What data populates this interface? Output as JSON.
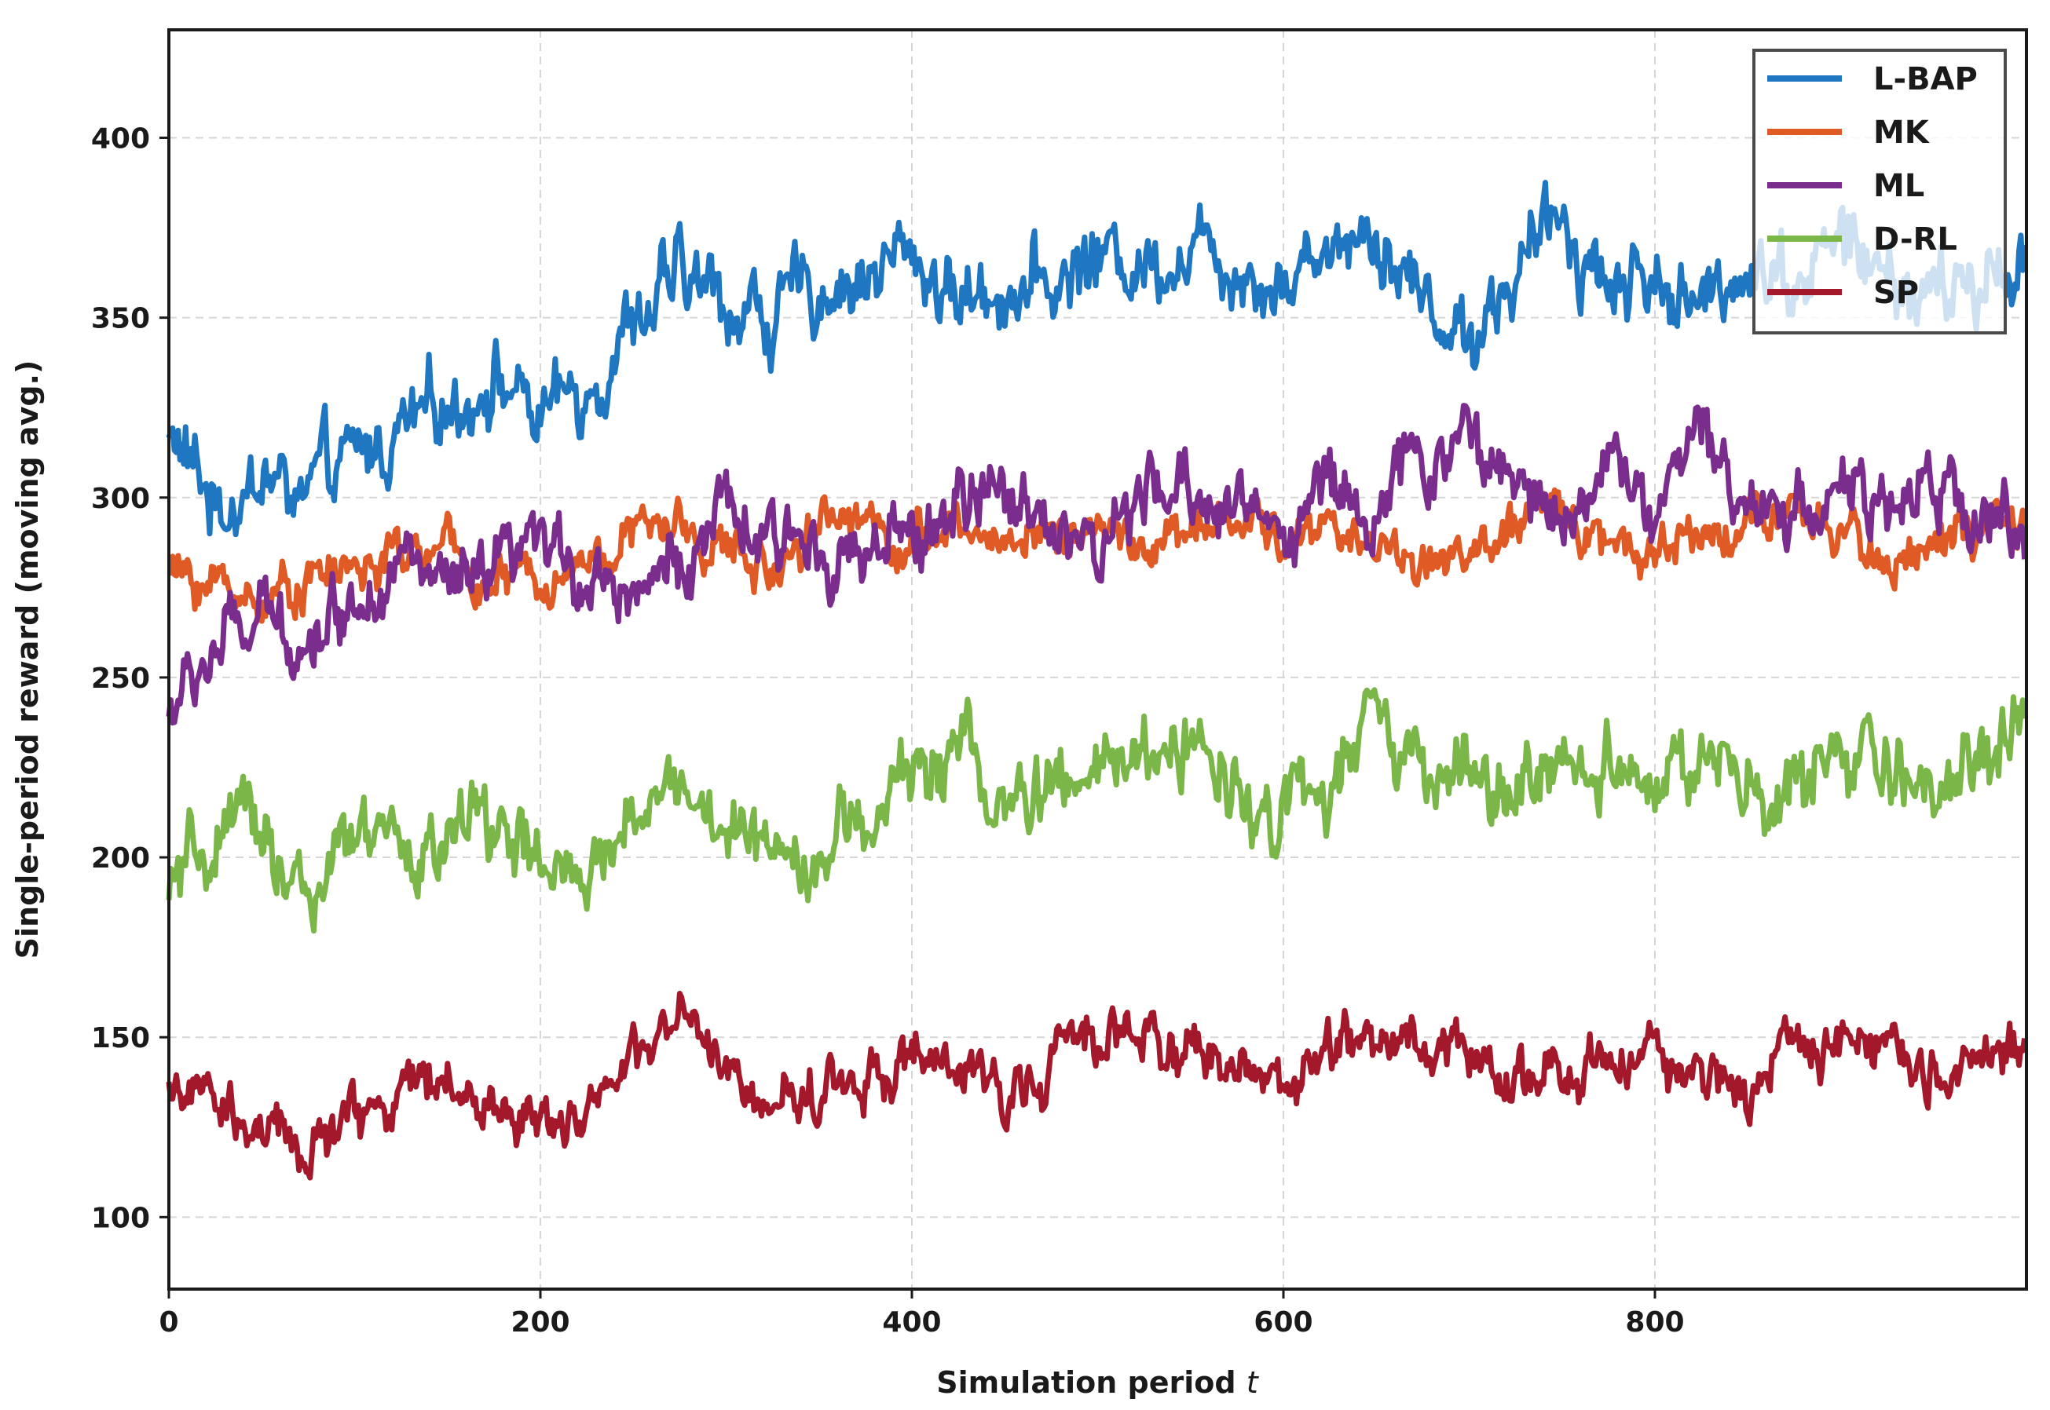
{
  "chart_data": {
    "type": "line",
    "title": "",
    "xlabel": "Simulation period",
    "xlabel_var": "t",
    "ylabel": "Single-period reward (moving avg.)",
    "xlim": [
      0,
      1000
    ],
    "ylim": [
      80,
      430
    ],
    "xticks": [
      "0",
      "200",
      "400",
      "600",
      "800"
    ],
    "yticks": [
      "100",
      "150",
      "200",
      "250",
      "300",
      "350",
      "400"
    ],
    "grid": true,
    "legend_position": "top-right",
    "series": [
      {
        "name": "L-BAP",
        "color": "#1f77c2",
        "x": [
          0,
          25,
          50,
          75,
          100,
          125,
          150,
          175,
          200,
          225,
          250,
          275,
          300,
          325,
          350,
          375,
          400,
          425,
          450,
          475,
          500,
          525,
          550,
          575,
          600,
          625,
          650,
          675,
          700,
          725,
          750,
          775,
          800,
          825,
          850,
          875,
          900,
          925,
          950,
          975,
          1000
        ],
        "values": [
          318,
          298,
          305,
          300,
          310,
          318,
          325,
          335,
          322,
          332,
          350,
          360,
          355,
          350,
          358,
          362,
          368,
          355,
          360,
          358,
          368,
          365,
          372,
          366,
          360,
          372,
          376,
          355,
          345,
          362,
          378,
          360,
          362,
          350,
          368,
          360,
          372,
          360,
          356,
          358,
          370
        ]
      },
      {
        "name": "MK",
        "color": "#e05a26",
        "x": [
          0,
          25,
          50,
          75,
          100,
          125,
          150,
          175,
          200,
          225,
          250,
          275,
          300,
          325,
          350,
          375,
          400,
          425,
          450,
          475,
          500,
          525,
          550,
          575,
          600,
          625,
          650,
          675,
          700,
          725,
          750,
          775,
          800,
          825,
          850,
          875,
          900,
          925,
          950,
          975,
          1000
        ],
        "values": [
          279,
          276,
          272,
          278,
          280,
          283,
          285,
          275,
          278,
          283,
          290,
          292,
          285,
          280,
          296,
          294,
          288,
          290,
          288,
          292,
          290,
          286,
          290,
          294,
          288,
          292,
          287,
          282,
          284,
          290,
          298,
          288,
          286,
          290,
          294,
          292,
          290,
          282,
          288,
          290,
          290
        ]
      },
      {
        "name": "ML",
        "color": "#7b2d8e",
        "x": [
          0,
          25,
          50,
          75,
          100,
          125,
          150,
          175,
          200,
          225,
          250,
          275,
          300,
          325,
          350,
          375,
          400,
          425,
          450,
          475,
          500,
          525,
          550,
          575,
          600,
          625,
          650,
          675,
          700,
          725,
          750,
          775,
          800,
          825,
          850,
          875,
          900,
          925,
          950,
          975,
          1000
        ],
        "values": [
          240,
          258,
          265,
          262,
          272,
          285,
          272,
          276,
          285,
          280,
          276,
          282,
          294,
          284,
          290,
          282,
          287,
          298,
          300,
          296,
          284,
          298,
          302,
          298,
          292,
          305,
          296,
          310,
          318,
          302,
          298,
          310,
          298,
          315,
          302,
          296,
          304,
          295,
          302,
          296,
          292
        ]
      },
      {
        "name": "D-RL",
        "color": "#7ab648",
        "x": [
          0,
          25,
          50,
          75,
          100,
          125,
          150,
          175,
          200,
          225,
          250,
          275,
          300,
          325,
          350,
          375,
          400,
          425,
          450,
          475,
          500,
          525,
          550,
          575,
          600,
          625,
          650,
          675,
          700,
          725,
          750,
          775,
          800,
          825,
          850,
          875,
          900,
          925,
          950,
          975,
          1000
        ],
        "values": [
          190,
          202,
          210,
          186,
          205,
          200,
          205,
          212,
          196,
          188,
          215,
          222,
          205,
          206,
          202,
          208,
          224,
          232,
          212,
          218,
          222,
          228,
          232,
          220,
          215,
          218,
          236,
          224,
          220,
          216,
          226,
          230,
          222,
          224,
          218,
          214,
          232,
          218,
          222,
          230,
          236
        ]
      },
      {
        "name": "SP",
        "color": "#a3192b",
        "x": [
          0,
          25,
          50,
          75,
          100,
          125,
          150,
          175,
          200,
          225,
          250,
          275,
          300,
          325,
          350,
          375,
          400,
          425,
          450,
          475,
          500,
          525,
          550,
          575,
          600,
          625,
          650,
          675,
          700,
          725,
          750,
          775,
          800,
          825,
          850,
          875,
          900,
          925,
          950,
          975,
          1000
        ],
        "values": [
          138,
          130,
          122,
          118,
          128,
          136,
          138,
          130,
          128,
          132,
          140,
          156,
          138,
          130,
          136,
          140,
          144,
          138,
          136,
          142,
          152,
          150,
          148,
          140,
          138,
          146,
          152,
          148,
          146,
          134,
          142,
          140,
          146,
          140,
          134,
          148,
          152,
          150,
          142,
          142,
          150
        ]
      }
    ]
  }
}
